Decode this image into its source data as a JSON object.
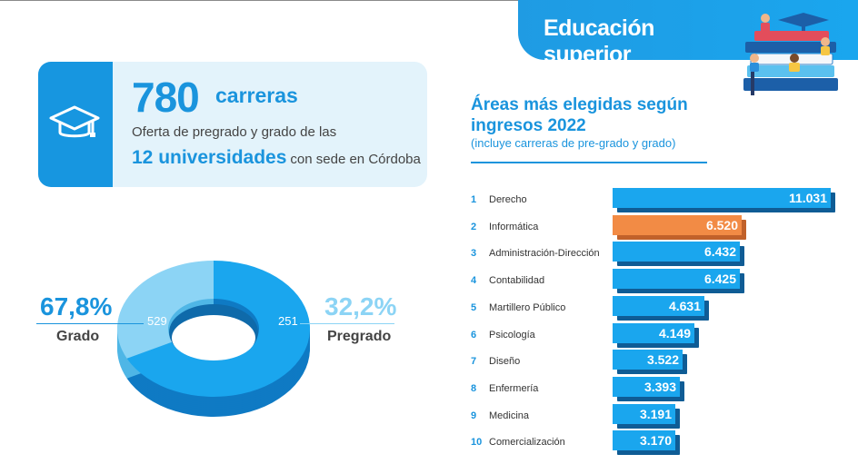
{
  "header": {
    "title": "Educación superior"
  },
  "summary": {
    "number": "780",
    "number_label": "carreras",
    "line1": "Oferta de pregrado y grado de las",
    "line2_bold": "12 universidades",
    "line2_rest": "con sede en Córdoba"
  },
  "colors": {
    "accent": "#1a94dd",
    "highlight": "#f28b45",
    "light": "#8cd4f5"
  },
  "chart_data": [
    {
      "type": "pie",
      "style": "donut",
      "slices": [
        {
          "label": "Grado",
          "value": 529,
          "percent_label": "67,8%"
        },
        {
          "label": "Pregrado",
          "value": 251,
          "percent_label": "32,2%"
        }
      ]
    },
    {
      "type": "bar",
      "orientation": "horizontal",
      "title": "Áreas más elegidas según ingresos 2022",
      "subtitle": "(incluye carreras de pre-grado y grado)",
      "highlight_index": 1,
      "rows": [
        {
          "rank": "1",
          "category": "Derecho",
          "value": 11031,
          "label": "11.031"
        },
        {
          "rank": "2",
          "category": "Informática",
          "value": 6520,
          "label": "6.520"
        },
        {
          "rank": "3",
          "category": "Administración-Dirección",
          "value": 6432,
          "label": "6.432"
        },
        {
          "rank": "4",
          "category": "Contabilidad",
          "value": 6425,
          "label": "6.425"
        },
        {
          "rank": "5",
          "category": "Martillero Público",
          "value": 4631,
          "label": "4.631"
        },
        {
          "rank": "6",
          "category": "Psicología",
          "value": 4149,
          "label": "4.149"
        },
        {
          "rank": "7",
          "category": "Diseño",
          "value": 3522,
          "label": "3.522"
        },
        {
          "rank": "8",
          "category": "Enfermería",
          "value": 3393,
          "label": "3.393"
        },
        {
          "rank": "9",
          "category": "Medicina",
          "value": 3191,
          "label": "3.191"
        },
        {
          "rank": "10",
          "category": "Comercialización",
          "value": 3170,
          "label": "3.170"
        }
      ]
    }
  ]
}
